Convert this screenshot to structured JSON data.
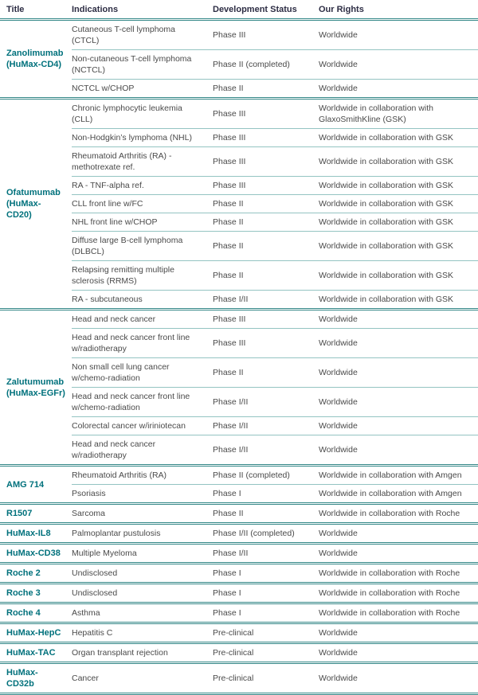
{
  "colors": {
    "accent_teal": "#00717c",
    "header_text": "#2d2d44",
    "body_text": "#4a4a4a",
    "separator_strong": "#338787",
    "separator_light": "#94c4c2",
    "background": "#ffffff"
  },
  "table": {
    "columns": [
      "Title",
      "Indications",
      "Development Status",
      "Our Rights"
    ],
    "groups": [
      {
        "title": "Zanolimumab\n(HuMax-CD4)",
        "rows": [
          {
            "indication": "Cutaneous T-cell lymphoma\n(CTCL)",
            "status": "Phase III",
            "rights": "Worldwide"
          },
          {
            "indication": "Non-cutaneous T-cell lymphoma\n(NCTCL)",
            "status": "Phase II (completed)",
            "rights": "Worldwide"
          },
          {
            "indication": "NCTCL w/CHOP",
            "status": "Phase II",
            "rights": "Worldwide"
          }
        ]
      },
      {
        "title": "Ofatumumab\n(HuMax-CD20)",
        "rows": [
          {
            "indication": "Chronic lymphocytic leukemia\n(CLL)",
            "status": "Phase III",
            "rights": "Worldwide in collaboration with\nGlaxoSmithKline (GSK)"
          },
          {
            "indication": "Non-Hodgkin’s lymphoma (NHL)",
            "status": "Phase III",
            "rights": "Worldwide in collaboration with GSK"
          },
          {
            "indication": "Rheumatoid Arthritis (RA) -\nmethotrexate ref.",
            "status": "Phase III",
            "rights": "Worldwide in collaboration with GSK"
          },
          {
            "indication": "RA - TNF-alpha ref.",
            "status": "Phase III",
            "rights": "Worldwide in collaboration with GSK"
          },
          {
            "indication": "CLL front line w/FC",
            "status": "Phase II",
            "rights": "Worldwide in collaboration with GSK"
          },
          {
            "indication": "NHL front line w/CHOP",
            "status": "Phase II",
            "rights": "Worldwide in collaboration with GSK"
          },
          {
            "indication": "Diffuse large B-cell lymphoma\n(DLBCL)",
            "status": "Phase II",
            "rights": "Worldwide in collaboration with GSK"
          },
          {
            "indication": "Relapsing remitting multiple\nsclerosis (RRMS)",
            "status": "Phase II",
            "rights": "Worldwide in collaboration with GSK"
          },
          {
            "indication": "RA - subcutaneous",
            "status": "Phase I/II",
            "rights": "Worldwide in collaboration with GSK"
          }
        ]
      },
      {
        "title": "Zalutumumab\n(HuMax-EGFr)",
        "rows": [
          {
            "indication": "Head and neck cancer",
            "status": "Phase III",
            "rights": "Worldwide"
          },
          {
            "indication": "Head and neck cancer front line\nw/radiotherapy",
            "status": "Phase III",
            "rights": "Worldwide"
          },
          {
            "indication": "Non small cell lung cancer\nw/chemo-radiation",
            "status": "Phase II",
            "rights": "Worldwide"
          },
          {
            "indication": "Head and neck cancer front line\nw/chemo-radiation",
            "status": "Phase I/II",
            "rights": "Worldwide"
          },
          {
            "indication": "Colorectal cancer w/iriniotecan",
            "status": "Phase I/II",
            "rights": "Worldwide"
          },
          {
            "indication": "Head and neck cancer\nw/radiotherapy",
            "status": "Phase I/II",
            "rights": "Worldwide"
          }
        ]
      },
      {
        "title": "AMG 714",
        "rows": [
          {
            "indication": "Rheumatoid Arthritis (RA)",
            "status": "Phase II (completed)",
            "rights": "Worldwide in collaboration with Amgen"
          },
          {
            "indication": "Psoriasis",
            "status": "Phase I",
            "rights": "Worldwide in collaboration with Amgen"
          }
        ]
      },
      {
        "title": "R1507",
        "rows": [
          {
            "indication": "Sarcoma",
            "status": "Phase II",
            "rights": "Worldwide in collaboration with Roche"
          }
        ]
      },
      {
        "title": "HuMax-IL8",
        "rows": [
          {
            "indication": "Palmoplantar pustulosis",
            "status": "Phase I/II (completed)",
            "rights": "Worldwide"
          }
        ]
      },
      {
        "title": "HuMax-CD38",
        "rows": [
          {
            "indication": "Multiple Myeloma",
            "status": "Phase I/II",
            "rights": "Worldwide"
          }
        ]
      },
      {
        "title": "Roche 2",
        "rows": [
          {
            "indication": "Undisclosed",
            "status": "Phase I",
            "rights": "Worldwide in collaboration with Roche"
          }
        ]
      },
      {
        "title": "Roche 3",
        "rows": [
          {
            "indication": "Undisclosed",
            "status": "Phase I",
            "rights": "Worldwide in collaboration with Roche"
          }
        ]
      },
      {
        "title": "Roche 4",
        "rows": [
          {
            "indication": "Asthma",
            "status": "Phase I",
            "rights": "Worldwide in collaboration with Roche"
          }
        ]
      },
      {
        "title": "HuMax-HepC",
        "rows": [
          {
            "indication": "Hepatitis C",
            "status": "Pre-clinical",
            "rights": "Worldwide"
          }
        ]
      },
      {
        "title": "HuMax-TAC",
        "rows": [
          {
            "indication": "Organ transplant rejection",
            "status": "Pre-clinical",
            "rights": "Worldwide"
          }
        ]
      },
      {
        "title": "HuMax-CD32b",
        "rows": [
          {
            "indication": "Cancer",
            "status": "Pre-clinical",
            "rights": "Worldwide"
          }
        ]
      }
    ]
  }
}
